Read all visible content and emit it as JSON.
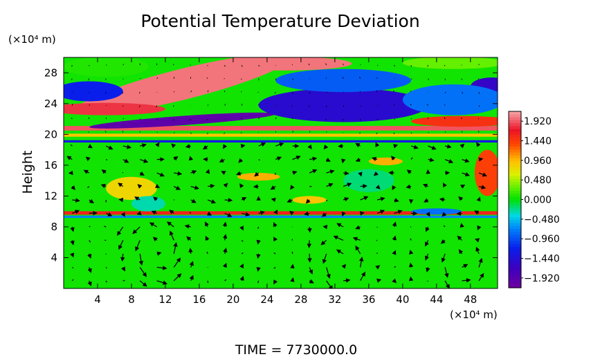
{
  "chart_data": {
    "type": "heatmap",
    "title": "Potential Temperature Deviation",
    "ylabel": "Height",
    "xunit": "(×10⁴ m)",
    "yunit": "(×10⁴ m)",
    "xlim": [
      0,
      51.2
    ],
    "ylim": [
      0,
      30.0
    ],
    "xticks": [
      4,
      8,
      12,
      16,
      20,
      24,
      28,
      32,
      36,
      40,
      44,
      48
    ],
    "yticks": [
      4,
      8,
      12,
      16,
      20,
      24,
      28
    ],
    "colorbar": {
      "labels": [
        "1.920",
        "1.440",
        "0.960",
        "0.480",
        "0.000",
        "−0.480",
        "−0.960",
        "−1.440",
        "−1.920"
      ],
      "values": [
        1.92,
        1.44,
        0.96,
        0.48,
        0.0,
        -0.48,
        -0.96,
        -1.44,
        -1.92
      ],
      "range": [
        -2.16,
        2.16
      ]
    },
    "features": [
      {
        "shape": "band",
        "x": [
          0,
          51.2
        ],
        "y": 20.8,
        "thickness": 0.6,
        "value": 1.9
      },
      {
        "shape": "band",
        "x": [
          0,
          51.2
        ],
        "y": 19.9,
        "thickness": 0.4,
        "value": 0.9
      },
      {
        "shape": "band",
        "x": [
          0,
          51.2
        ],
        "y": 19.1,
        "thickness": 0.3,
        "value": -1.3
      },
      {
        "shape": "band",
        "x": [
          0,
          51.2
        ],
        "y": 9.8,
        "thickness": 0.45,
        "value": 1.6
      },
      {
        "shape": "band",
        "x": [
          0,
          51.2
        ],
        "y": 9.3,
        "thickness": 0.3,
        "value": -0.7
      },
      {
        "shape": "blob",
        "cx": 14,
        "cy": 26.5,
        "rx": 13,
        "ry": 2.0,
        "angle": 14,
        "value": 2.0
      },
      {
        "shape": "blob",
        "cx": 26,
        "cy": 29.2,
        "rx": 8,
        "ry": 0.9,
        "angle": 0,
        "value": 2.0
      },
      {
        "shape": "blob",
        "cx": 5,
        "cy": 23.3,
        "rx": 7,
        "ry": 0.8,
        "angle": 0,
        "value": 1.8
      },
      {
        "shape": "blob",
        "cx": 47,
        "cy": 21.7,
        "rx": 6,
        "ry": 0.7,
        "angle": 0,
        "value": 1.5
      },
      {
        "shape": "blob",
        "cx": 14,
        "cy": 21.8,
        "rx": 11,
        "ry": 0.6,
        "angle": 4,
        "value": -2.0
      },
      {
        "shape": "blob",
        "cx": 30,
        "cy": 24.3,
        "rx": 4.5,
        "ry": 0.9,
        "angle": 0,
        "value": -2.0
      },
      {
        "shape": "blob",
        "cx": 37,
        "cy": 23.0,
        "rx": 4.5,
        "ry": 0.9,
        "angle": 0,
        "value": -2.0
      },
      {
        "shape": "blob",
        "cx": 33,
        "cy": 23.8,
        "rx": 10,
        "ry": 2.2,
        "angle": 0,
        "value": -1.5
      },
      {
        "shape": "blob",
        "cx": 50.5,
        "cy": 26.2,
        "rx": 2.5,
        "ry": 1.2,
        "angle": 0,
        "value": -1.6
      },
      {
        "shape": "blob",
        "cx": 3,
        "cy": 25.6,
        "rx": 4,
        "ry": 1.3,
        "angle": 0,
        "value": -1.2
      },
      {
        "shape": "blob",
        "cx": 46,
        "cy": 24.5,
        "rx": 6,
        "ry": 2.0,
        "angle": 0,
        "value": -0.8
      },
      {
        "shape": "blob",
        "cx": 33,
        "cy": 27.0,
        "rx": 8,
        "ry": 1.5,
        "angle": 0,
        "value": -0.9
      },
      {
        "shape": "blob",
        "cx": 5,
        "cy": 28.8,
        "rx": 5,
        "ry": 1.3,
        "angle": 0,
        "value": 0.1
      },
      {
        "shape": "blob",
        "cx": 46,
        "cy": 29.3,
        "rx": 6,
        "ry": 0.8,
        "angle": 0,
        "value": 0.3
      },
      {
        "shape": "blob",
        "cx": 50,
        "cy": 15.0,
        "rx": 1.5,
        "ry": 3.0,
        "angle": 0,
        "value": 1.4
      },
      {
        "shape": "blob",
        "cx": 23,
        "cy": 14.5,
        "rx": 2.5,
        "ry": 0.5,
        "angle": 0,
        "value": 1.0
      },
      {
        "shape": "blob",
        "cx": 38,
        "cy": 16.5,
        "rx": 2.0,
        "ry": 0.5,
        "angle": 0,
        "value": 1.0
      },
      {
        "shape": "blob",
        "cx": 8,
        "cy": 13.0,
        "rx": 3.0,
        "ry": 1.5,
        "angle": 0,
        "value": 0.8
      },
      {
        "shape": "blob",
        "cx": 29,
        "cy": 11.5,
        "rx": 2.0,
        "ry": 0.5,
        "angle": 0,
        "value": 0.9
      },
      {
        "shape": "blob",
        "cx": 44,
        "cy": 10.0,
        "rx": 3.0,
        "ry": 0.4,
        "angle": 0,
        "value": -0.8
      },
      {
        "shape": "blob",
        "cx": 10,
        "cy": 11.0,
        "rx": 2.0,
        "ry": 1.0,
        "angle": 0,
        "value": -0.3
      },
      {
        "shape": "blob",
        "cx": 36,
        "cy": 14.0,
        "rx": 3.0,
        "ry": 1.5,
        "angle": 0,
        "value": -0.2
      }
    ],
    "vortices": [
      {
        "cx": 11,
        "cy": 5.0,
        "r": 4.5,
        "strength": 1.3
      },
      {
        "cx": 33,
        "cy": 3.5,
        "r": 3.5,
        "strength": 1.2
      },
      {
        "cx": 47,
        "cy": 3.5,
        "r": 3.0,
        "strength": 1.0
      }
    ],
    "time_label": "TIME",
    "time_value": "7730000.0"
  }
}
